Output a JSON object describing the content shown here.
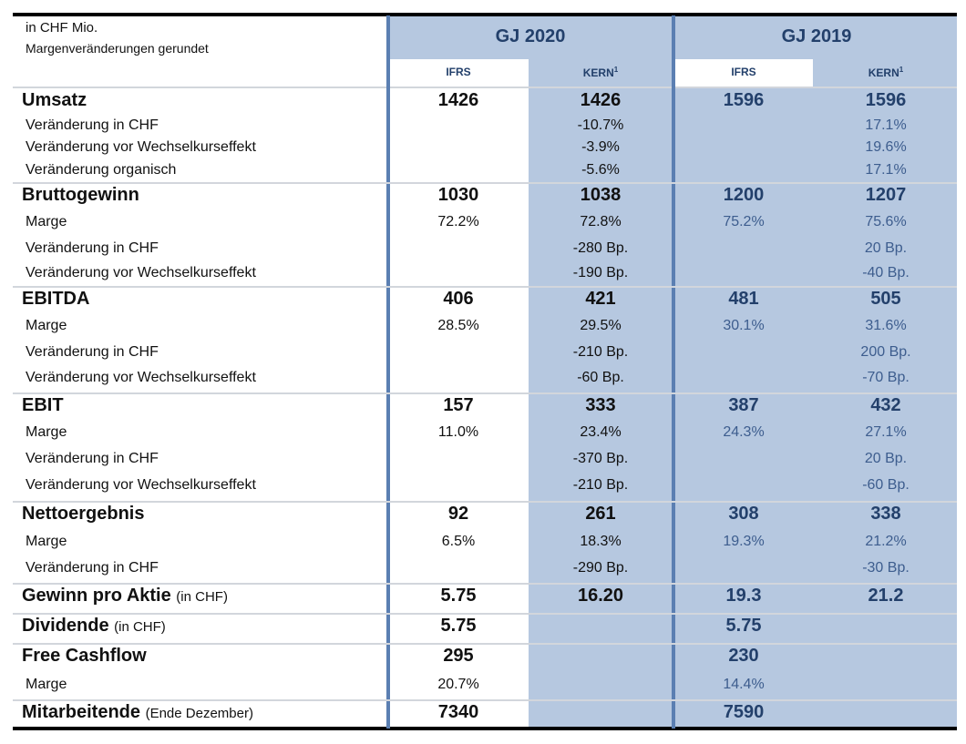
{
  "header": {
    "unit_line1": "in CHF Mio.",
    "unit_line2": "Margenveränderungen gerundet",
    "years": [
      "GJ 2020",
      "GJ 2019"
    ],
    "sub_ifrs": "IFRS",
    "sub_kern": "KERN",
    "kern_footnote": "1"
  },
  "rows": [
    {
      "label": "Umsatz",
      "type": "main",
      "values": [
        "1426",
        "1426",
        "1596",
        "1596"
      ]
    },
    {
      "label": "Veränderung in CHF",
      "type": "sub",
      "values": [
        "",
        "-10.7%",
        "",
        "17.1%"
      ]
    },
    {
      "label": "Veränderung vor Wechselkurseffekt",
      "type": "sub",
      "values": [
        "",
        "-3.9%",
        "",
        "19.6%"
      ]
    },
    {
      "label": "Veränderung organisch",
      "type": "sub",
      "values": [
        "",
        "-5.6%",
        "",
        "17.1%"
      ]
    },
    {
      "label": "Bruttogewinn",
      "type": "main",
      "values": [
        "1030",
        "1038",
        "1200",
        "1207"
      ]
    },
    {
      "label": "Marge",
      "type": "sub",
      "values": [
        "72.2%",
        "72.8%",
        "75.2%",
        "75.6%"
      ]
    },
    {
      "label": "Veränderung in CHF",
      "type": "sub",
      "values": [
        "",
        "-280 Bp.",
        "",
        "20 Bp."
      ]
    },
    {
      "label": "Veränderung vor Wechselkurseffekt",
      "type": "sub",
      "values": [
        "",
        "-190 Bp.",
        "",
        "-40 Bp."
      ]
    },
    {
      "label": "EBITDA",
      "type": "main",
      "values": [
        "406",
        "421",
        "481",
        "505"
      ]
    },
    {
      "label": "Marge",
      "type": "sub",
      "values": [
        "28.5%",
        "29.5%",
        "30.1%",
        "31.6%"
      ]
    },
    {
      "label": "Veränderung in CHF",
      "type": "sub",
      "values": [
        "",
        "-210 Bp.",
        "",
        "200 Bp."
      ]
    },
    {
      "label": "Veränderung vor Wechselkurseffekt",
      "type": "sub",
      "values": [
        "",
        "-60 Bp.",
        "",
        "-70 Bp."
      ]
    },
    {
      "label": "EBIT",
      "type": "main",
      "values": [
        "157",
        "333",
        "387",
        "432"
      ]
    },
    {
      "label": "Marge",
      "type": "sub",
      "values": [
        "11.0%",
        "23.4%",
        "24.3%",
        "27.1%"
      ]
    },
    {
      "label": "Veränderung in CHF",
      "type": "sub",
      "values": [
        "",
        "-370 Bp.",
        "",
        "20 Bp."
      ]
    },
    {
      "label": "Veränderung vor Wechselkurseffekt",
      "type": "sub",
      "values": [
        "",
        "-210 Bp.",
        "",
        "-60 Bp."
      ]
    },
    {
      "label": "Nettoergebnis",
      "type": "main",
      "values": [
        "92",
        "261",
        "308",
        "338"
      ]
    },
    {
      "label": "Marge",
      "type": "sub",
      "values": [
        "6.5%",
        "18.3%",
        "19.3%",
        "21.2%"
      ]
    },
    {
      "label": "Veränderung in CHF",
      "type": "sub",
      "values": [
        "",
        "-290 Bp.",
        "",
        "-30 Bp."
      ]
    },
    {
      "label": "Gewinn pro Aktie",
      "paren": "(in CHF)",
      "type": "main",
      "values": [
        "5.75",
        "16.20",
        "19.3",
        "21.2"
      ]
    },
    {
      "label": "Dividende",
      "paren": "(in CHF)",
      "type": "main",
      "values": [
        "5.75",
        "",
        "5.75",
        ""
      ]
    },
    {
      "label": "Free Cashflow",
      "type": "main",
      "values": [
        "295",
        "",
        "230",
        ""
      ]
    },
    {
      "label": "Marge",
      "type": "sub",
      "values": [
        "20.7%",
        "",
        "14.4%",
        ""
      ]
    },
    {
      "label": "Mitarbeitende",
      "paren": "(Ende Dezember)",
      "type": "main",
      "values": [
        "7340",
        "",
        "7590",
        ""
      ]
    }
  ],
  "colors": {
    "accent_bg": "#b6c8e0",
    "header_blue": "#23406b",
    "separator_blue": "#5b7fb2"
  }
}
